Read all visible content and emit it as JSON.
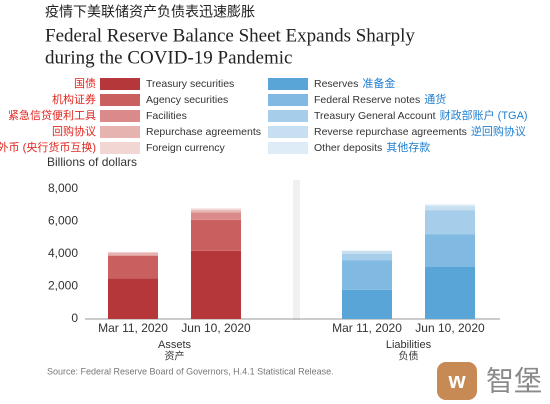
{
  "chart_data": {
    "type": "bar",
    "stacked": true,
    "title_cn": "疫情下美联储资产负债表迅速膨胀",
    "title": [
      "Federal Reserve Balance Sheet Expands Sharply",
      "during the COVID-19 Pandemic"
    ],
    "ylabel": "Billions of dollars",
    "ylim": [
      0,
      8000
    ],
    "yticks": [
      0,
      {
        "value": 2000,
        "label": "2,000"
      },
      {
        "value": 4000,
        "label": "4,000"
      },
      {
        "value": 6000,
        "label": "6,000"
      },
      {
        "value": 8000,
        "label": "8,000"
      }
    ],
    "grid": false,
    "groups": [
      {
        "name": "Assets",
        "name_cn": "资产",
        "categories": [
          "Mar 11, 2020",
          "Jun 10, 2020"
        ],
        "series": [
          {
            "name": "Treasury securities",
            "name_cn": "国债",
            "color": "#b6373a",
            "values": [
              2500,
              4200
            ]
          },
          {
            "name": "Agency securities",
            "name_cn": "机构证券",
            "color": "#c9605f",
            "values": [
              1400,
              1900
            ]
          },
          {
            "name": "Facilities",
            "name_cn": "紧急信贷便利工具",
            "color": "#da8b89",
            "values": [
              0,
              450
            ]
          },
          {
            "name": "Repurchase agreements",
            "name_cn": "回购协议",
            "color": "#e7b3b0",
            "values": [
              200,
              150
            ]
          },
          {
            "name": "Foreign currency",
            "name_cn": "外币 (央行货币互换)",
            "color": "#f2d6d4",
            "values": [
              0,
              100
            ]
          }
        ]
      },
      {
        "name": "Liabilities",
        "name_cn": "负债",
        "categories": [
          "Mar 11, 2020",
          "Jun 10, 2020"
        ],
        "series": [
          {
            "name": "Reserves",
            "name_cn": "准备金",
            "color": "#5aa5d7",
            "values": [
              1800,
              3200
            ]
          },
          {
            "name": "Federal Reserve notes",
            "name_cn": "通货",
            "color": "#80b9e2",
            "values": [
              1800,
              2000
            ]
          },
          {
            "name": "Treasury General Account",
            "name_cn": "财政部账户 (TGA)",
            "color": "#a6cdea",
            "values": [
              400,
              1500
            ]
          },
          {
            "name": "Reverse repurchase agreements",
            "name_cn": "逆回购协议",
            "color": "#c6dff1",
            "values": [
              200,
              250
            ]
          },
          {
            "name": "Other deposits",
            "name_cn": "其他存款",
            "color": "#ddecf7",
            "values": [
              0,
              100
            ]
          }
        ]
      }
    ],
    "source": "Source: Federal Reserve Board of Governors, H.4.1 Statistical Release.",
    "watermark": "智堡"
  }
}
